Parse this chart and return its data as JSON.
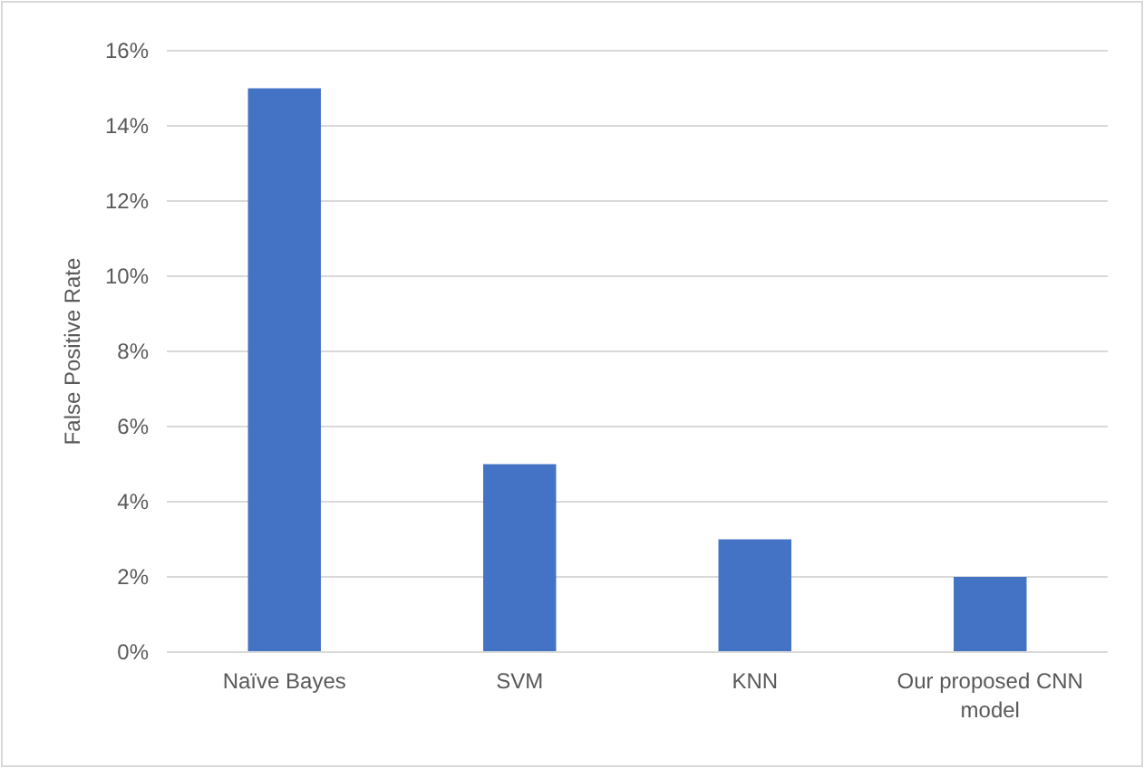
{
  "chart_data": {
    "type": "bar",
    "ylabel": "False Positive Rate",
    "categories": [
      "Naïve Bayes",
      "SVM",
      "KNN",
      "Our proposed CNN model"
    ],
    "values": [
      15,
      5,
      3,
      2
    ],
    "color": "#4472c4",
    "ylim": [
      0,
      16
    ],
    "yticks": [
      {
        "value": 0,
        "label": "0%"
      },
      {
        "value": 2,
        "label": "2%"
      },
      {
        "value": 4,
        "label": "4%"
      },
      {
        "value": 6,
        "label": "6%"
      },
      {
        "value": 8,
        "label": "8%"
      },
      {
        "value": 10,
        "label": "10%"
      },
      {
        "value": 12,
        "label": "12%"
      },
      {
        "value": 14,
        "label": "14%"
      },
      {
        "value": 16,
        "label": "16%"
      }
    ],
    "grid": "y"
  }
}
